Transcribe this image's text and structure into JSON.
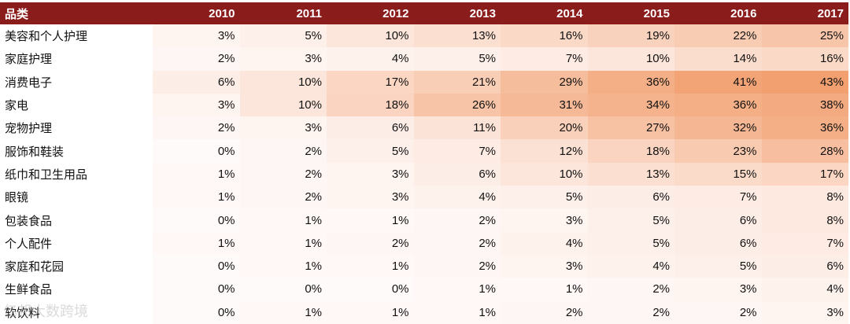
{
  "table": {
    "header": [
      "品类",
      "2010",
      "2011",
      "2012",
      "2013",
      "2014",
      "2015",
      "2016",
      "2017"
    ],
    "rows": [
      {
        "label": "美容和个人护理",
        "cells": [
          "3%",
          "5%",
          "10%",
          "13%",
          "16%",
          "19%",
          "22%",
          "25%"
        ]
      },
      {
        "label": "家庭护理",
        "cells": [
          "2%",
          "3%",
          "4%",
          "5%",
          "7%",
          "10%",
          "14%",
          "16%"
        ]
      },
      {
        "label": "消费电子",
        "cells": [
          "6%",
          "10%",
          "17%",
          "21%",
          "29%",
          "36%",
          "41%",
          "43%"
        ]
      },
      {
        "label": "家电",
        "cells": [
          "3%",
          "10%",
          "18%",
          "26%",
          "31%",
          "34%",
          "36%",
          "38%"
        ]
      },
      {
        "label": "宠物护理",
        "cells": [
          "2%",
          "3%",
          "6%",
          "11%",
          "20%",
          "27%",
          "32%",
          "36%"
        ]
      },
      {
        "label": "服饰和鞋装",
        "cells": [
          "0%",
          "2%",
          "5%",
          "7%",
          "12%",
          "18%",
          "23%",
          "28%"
        ]
      },
      {
        "label": "纸巾和卫生用品",
        "cells": [
          "1%",
          "2%",
          "3%",
          "6%",
          "10%",
          "13%",
          "15%",
          "17%"
        ]
      },
      {
        "label": "眼镜",
        "cells": [
          "1%",
          "2%",
          "3%",
          "4%",
          "5%",
          "6%",
          "7%",
          "8%"
        ]
      },
      {
        "label": "包装食品",
        "cells": [
          "0%",
          "1%",
          "1%",
          "2%",
          "3%",
          "5%",
          "6%",
          "8%"
        ]
      },
      {
        "label": "个人配件",
        "cells": [
          "1%",
          "1%",
          "2%",
          "2%",
          "4%",
          "5%",
          "6%",
          "7%"
        ]
      },
      {
        "label": "家庭和花园",
        "cells": [
          "0%",
          "1%",
          "1%",
          "2%",
          "3%",
          "4%",
          "5%",
          "6%"
        ]
      },
      {
        "label": "生鲜食品",
        "cells": [
          "0%",
          "0%",
          "0%",
          "1%",
          "1%",
          "2%",
          "3%",
          "4%"
        ]
      },
      {
        "label": "软饮料",
        "cells": [
          "0%",
          "1%",
          "1%",
          "1%",
          "2%",
          "2%",
          "2%",
          "3%"
        ]
      }
    ]
  },
  "watermark": "亿邦大数跨境"
}
